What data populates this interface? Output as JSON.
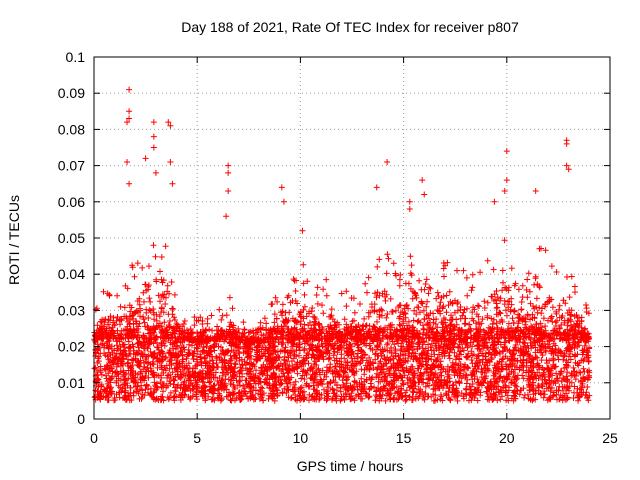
{
  "chart_data": {
    "type": "scatter",
    "title": "Day 188 of 2021, Rate Of TEC Index for receiver p807",
    "xlabel": "GPS time / hours",
    "ylabel": "ROTI / TECUs",
    "xlim": [
      0,
      25
    ],
    "ylim": [
      0,
      0.1
    ],
    "x_ticks": [
      "0",
      "5",
      "10",
      "15",
      "20",
      "25"
    ],
    "y_ticks": [
      "0",
      "0.01",
      "0.02",
      "0.03",
      "0.04",
      "0.05",
      "0.06",
      "0.07",
      "0.08",
      "0.09",
      "0.1"
    ],
    "x_tick_values": [
      0,
      5,
      10,
      15,
      20,
      25
    ],
    "y_tick_values": [
      0,
      0.01,
      0.02,
      0.03,
      0.04,
      0.05,
      0.06,
      0.07,
      0.08,
      0.09,
      0.1
    ],
    "grid": true,
    "marker": "plus",
    "color": "#ff0000",
    "series": [
      {
        "x_range": [
          0,
          24
        ],
        "baseline_band": [
          0.008,
          0.022
        ],
        "notable_points": [
          {
            "x": 1.7,
            "y": 0.091
          },
          {
            "x": 1.7,
            "y": 0.085
          },
          {
            "x": 1.7,
            "y": 0.083
          },
          {
            "x": 1.6,
            "y": 0.082
          },
          {
            "x": 2.9,
            "y": 0.082
          },
          {
            "x": 3.6,
            "y": 0.082
          },
          {
            "x": 3.7,
            "y": 0.081
          },
          {
            "x": 2.9,
            "y": 0.078
          },
          {
            "x": 2.9,
            "y": 0.075
          },
          {
            "x": 2.5,
            "y": 0.072
          },
          {
            "x": 1.6,
            "y": 0.071
          },
          {
            "x": 3.7,
            "y": 0.071
          },
          {
            "x": 3.0,
            "y": 0.068
          },
          {
            "x": 1.7,
            "y": 0.065
          },
          {
            "x": 3.8,
            "y": 0.065
          },
          {
            "x": 6.5,
            "y": 0.07
          },
          {
            "x": 6.5,
            "y": 0.068
          },
          {
            "x": 6.5,
            "y": 0.063
          },
          {
            "x": 6.4,
            "y": 0.056
          },
          {
            "x": 9.1,
            "y": 0.064
          },
          {
            "x": 9.2,
            "y": 0.06
          },
          {
            "x": 10.1,
            "y": 0.052
          },
          {
            "x": 13.7,
            "y": 0.064
          },
          {
            "x": 14.2,
            "y": 0.071
          },
          {
            "x": 15.3,
            "y": 0.06
          },
          {
            "x": 15.3,
            "y": 0.058
          },
          {
            "x": 15.9,
            "y": 0.066
          },
          {
            "x": 16.0,
            "y": 0.062
          },
          {
            "x": 19.4,
            "y": 0.06
          },
          {
            "x": 19.9,
            "y": 0.063
          },
          {
            "x": 20.0,
            "y": 0.074
          },
          {
            "x": 20.0,
            "y": 0.066
          },
          {
            "x": 21.4,
            "y": 0.063
          },
          {
            "x": 22.9,
            "y": 0.077
          },
          {
            "x": 22.9,
            "y": 0.076
          },
          {
            "x": 22.9,
            "y": 0.07
          },
          {
            "x": 23.0,
            "y": 0.069
          }
        ]
      }
    ]
  }
}
